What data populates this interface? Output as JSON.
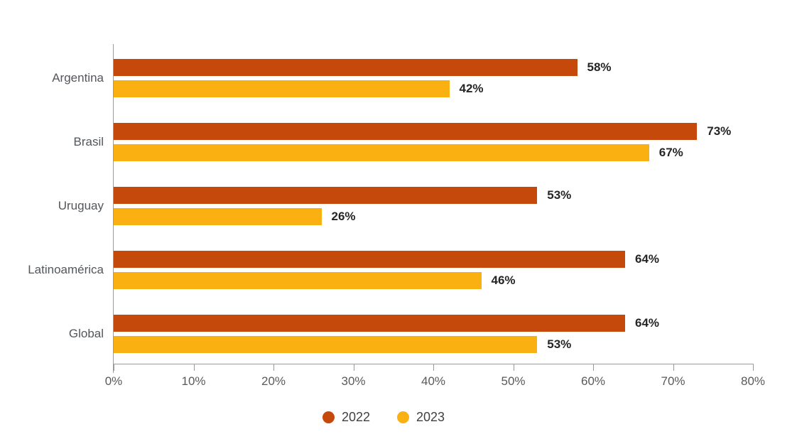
{
  "chart_data": {
    "type": "bar",
    "orientation": "horizontal",
    "title": "",
    "categories": [
      "Argentina",
      "Brasil",
      "Uruguay",
      "Latinoamérica",
      "Global"
    ],
    "series": [
      {
        "name": "2022",
        "color": "#C6490C",
        "values": [
          58,
          73,
          53,
          64,
          64
        ],
        "labels": [
          "58%",
          "73%",
          "53%",
          "64%",
          "64%"
        ]
      },
      {
        "name": "2023",
        "color": "#FBB011",
        "values": [
          42,
          67,
          26,
          46,
          53
        ],
        "labels": [
          "42%",
          "67%",
          "26%",
          "46%",
          "53%"
        ]
      }
    ],
    "xlim": [
      0,
      80
    ],
    "x_ticks": [
      "0%",
      "10%",
      "20%",
      "30%",
      "40%",
      "50%",
      "60%",
      "70%",
      "80%"
    ],
    "grid": false,
    "legend_position": "bottom"
  },
  "colors": {
    "axis": "#9B9B9B",
    "tick_text": "#58595B",
    "category_text": "#53565A",
    "value_text": "#252525",
    "legend_text": "#414141",
    "background": "#FFFFFF"
  }
}
